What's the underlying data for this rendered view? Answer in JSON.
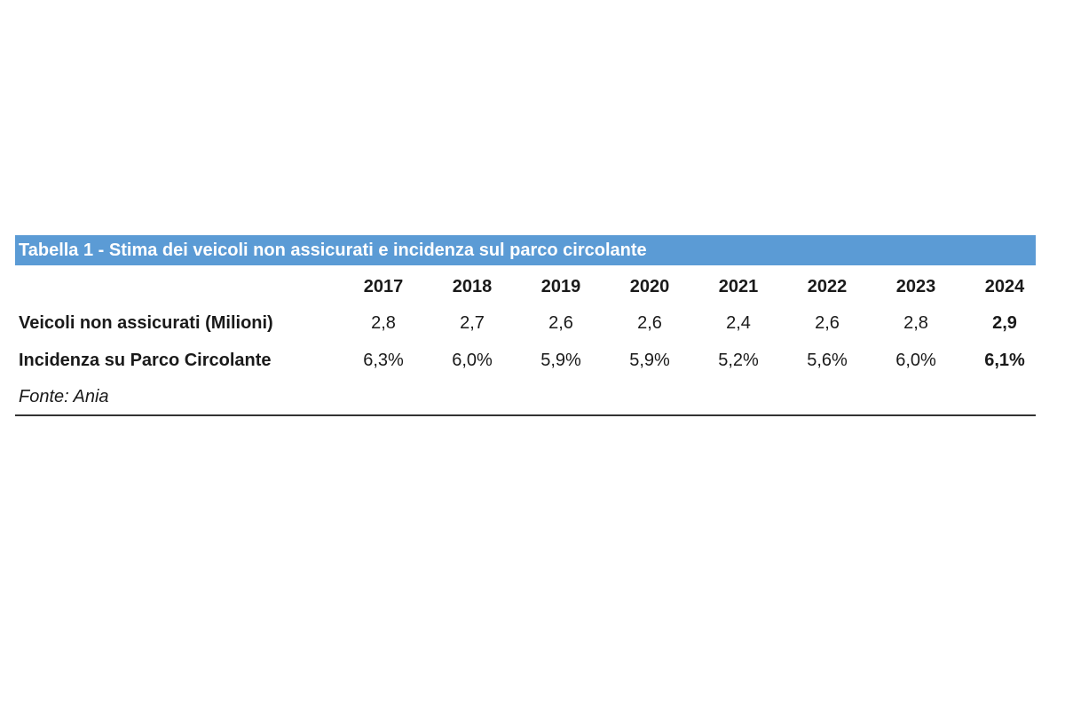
{
  "chart_data": {
    "type": "table",
    "title": "Tabella 1 - Stima dei veicoli non assicurati e incidenza sul parco circolante",
    "columns": [
      "2017",
      "2018",
      "2019",
      "2020",
      "2021",
      "2022",
      "2023",
      "2024"
    ],
    "rows": [
      {
        "label": "Veicoli non assicurati (Milioni)",
        "cells": [
          "2,8",
          "2,7",
          "2,6",
          "2,6",
          "2,4",
          "2,6",
          "2,8",
          "2,9"
        ],
        "values": [
          2.8,
          2.7,
          2.6,
          2.6,
          2.4,
          2.6,
          2.8,
          2.9
        ]
      },
      {
        "label": "Incidenza su Parco Circolante",
        "cells": [
          "6,3%",
          "6,0%",
          "5,9%",
          "5,9%",
          "5,2%",
          "5,6%",
          "6,0%",
          "6,1%"
        ],
        "values": [
          6.3,
          6.0,
          5.9,
          5.9,
          5.2,
          5.6,
          6.0,
          6.1
        ]
      }
    ],
    "highlighted_column": "2024",
    "source": "Fonte: Ania",
    "header_color": "#5b9bd5"
  }
}
